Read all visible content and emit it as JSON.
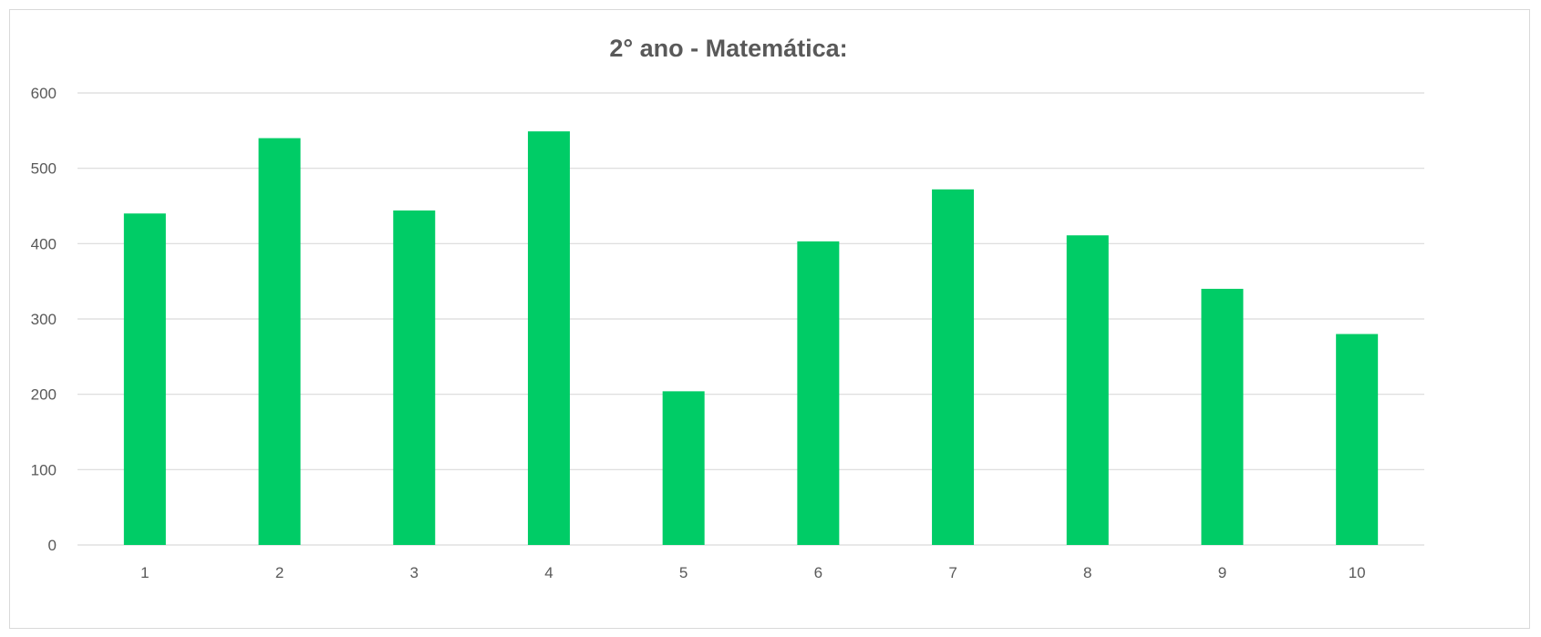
{
  "chart_data": {
    "type": "bar",
    "title": "2° ano - Matemática:",
    "xlabel": "",
    "ylabel": "",
    "categories": [
      "1",
      "2",
      "3",
      "4",
      "5",
      "6",
      "7",
      "8",
      "9",
      "10"
    ],
    "values": [
      440,
      540,
      444,
      549,
      204,
      403,
      472,
      411,
      340,
      280
    ],
    "ylim": [
      0,
      600
    ],
    "yticks": [
      "0",
      "100",
      "200",
      "300",
      "400",
      "500",
      "600"
    ],
    "grid": true,
    "legend": "none",
    "colors": {
      "bar": "#00cc66",
      "grid": "#d9d9d9",
      "text": "#595959"
    }
  }
}
